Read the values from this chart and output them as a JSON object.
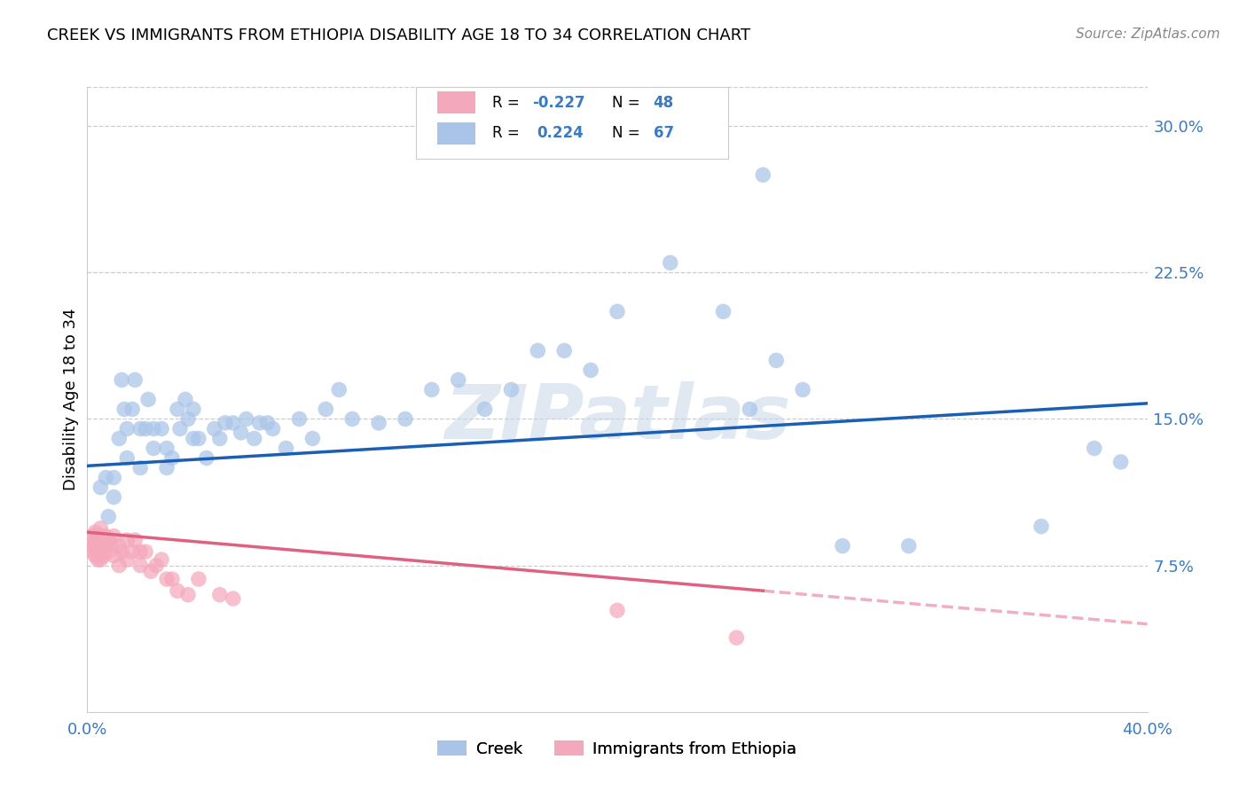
{
  "title": "CREEK VS IMMIGRANTS FROM ETHIOPIA DISABILITY AGE 18 TO 34 CORRELATION CHART",
  "source": "Source: ZipAtlas.com",
  "ylabel": "Disability Age 18 to 34",
  "yticks_labels": [
    "7.5%",
    "15.0%",
    "22.5%",
    "30.0%"
  ],
  "ytick_vals": [
    0.075,
    0.15,
    0.225,
    0.3
  ],
  "xlim": [
    0.0,
    0.4
  ],
  "ylim": [
    0.0,
    0.32
  ],
  "blue_color": "#aac4e8",
  "pink_color": "#f4a8bb",
  "line_blue": "#1a5fb4",
  "line_pink": "#e06080",
  "watermark": "ZIPatlas",
  "blue_x": [
    0.005,
    0.007,
    0.008,
    0.01,
    0.01,
    0.012,
    0.013,
    0.014,
    0.015,
    0.015,
    0.017,
    0.018,
    0.02,
    0.02,
    0.022,
    0.023,
    0.025,
    0.025,
    0.028,
    0.03,
    0.03,
    0.032,
    0.034,
    0.035,
    0.037,
    0.038,
    0.04,
    0.04,
    0.042,
    0.045,
    0.048,
    0.05,
    0.052,
    0.055,
    0.058,
    0.06,
    0.063,
    0.065,
    0.068,
    0.07,
    0.075,
    0.08,
    0.085,
    0.09,
    0.095,
    0.1,
    0.11,
    0.12,
    0.13,
    0.14,
    0.15,
    0.16,
    0.17,
    0.18,
    0.19,
    0.2,
    0.22,
    0.24,
    0.25,
    0.26,
    0.27,
    0.31,
    0.36,
    0.38,
    0.39,
    0.255,
    0.285
  ],
  "blue_y": [
    0.115,
    0.12,
    0.1,
    0.12,
    0.11,
    0.14,
    0.17,
    0.155,
    0.145,
    0.13,
    0.155,
    0.17,
    0.145,
    0.125,
    0.145,
    0.16,
    0.145,
    0.135,
    0.145,
    0.135,
    0.125,
    0.13,
    0.155,
    0.145,
    0.16,
    0.15,
    0.155,
    0.14,
    0.14,
    0.13,
    0.145,
    0.14,
    0.148,
    0.148,
    0.143,
    0.15,
    0.14,
    0.148,
    0.148,
    0.145,
    0.135,
    0.15,
    0.14,
    0.155,
    0.165,
    0.15,
    0.148,
    0.15,
    0.165,
    0.17,
    0.155,
    0.165,
    0.185,
    0.185,
    0.175,
    0.205,
    0.23,
    0.205,
    0.155,
    0.18,
    0.165,
    0.085,
    0.095,
    0.135,
    0.128,
    0.275,
    0.085
  ],
  "pink_x": [
    0.002,
    0.002,
    0.002,
    0.003,
    0.003,
    0.003,
    0.003,
    0.004,
    0.004,
    0.004,
    0.004,
    0.005,
    0.005,
    0.005,
    0.005,
    0.005,
    0.006,
    0.006,
    0.006,
    0.007,
    0.007,
    0.008,
    0.008,
    0.009,
    0.01,
    0.01,
    0.012,
    0.012,
    0.013,
    0.015,
    0.015,
    0.017,
    0.018,
    0.02,
    0.02,
    0.022,
    0.024,
    0.026,
    0.028,
    0.03,
    0.032,
    0.034,
    0.038,
    0.042,
    0.05,
    0.055,
    0.2,
    0.245
  ],
  "pink_y": [
    0.09,
    0.085,
    0.082,
    0.092,
    0.088,
    0.085,
    0.08,
    0.09,
    0.086,
    0.082,
    0.078,
    0.094,
    0.09,
    0.086,
    0.082,
    0.078,
    0.088,
    0.084,
    0.08,
    0.09,
    0.086,
    0.088,
    0.082,
    0.086,
    0.09,
    0.08,
    0.085,
    0.075,
    0.082,
    0.088,
    0.078,
    0.082,
    0.088,
    0.082,
    0.075,
    0.082,
    0.072,
    0.075,
    0.078,
    0.068,
    0.068,
    0.062,
    0.06,
    0.068,
    0.06,
    0.058,
    0.052,
    0.038
  ]
}
